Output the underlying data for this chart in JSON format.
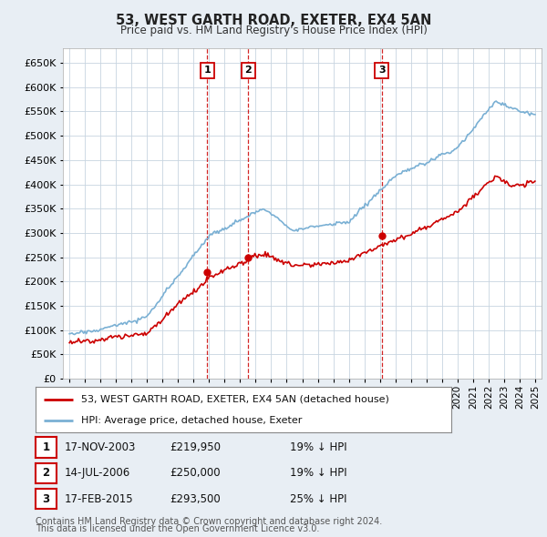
{
  "title": "53, WEST GARTH ROAD, EXETER, EX4 5AN",
  "subtitle": "Price paid vs. HM Land Registry's House Price Index (HPI)",
  "legend_label_red": "53, WEST GARTH ROAD, EXETER, EX4 5AN (detached house)",
  "legend_label_blue": "HPI: Average price, detached house, Exeter",
  "footer1": "Contains HM Land Registry data © Crown copyright and database right 2024.",
  "footer2": "This data is licensed under the Open Government Licence v3.0.",
  "transactions": [
    {
      "num": 1,
      "date": "17-NOV-2003",
      "price": "£219,950",
      "pct": "19% ↓ HPI",
      "year": 2003.88
    },
    {
      "num": 2,
      "date": "14-JUL-2006",
      "price": "£250,000",
      "pct": "19% ↓ HPI",
      "year": 2006.53
    },
    {
      "num": 3,
      "date": "17-FEB-2015",
      "price": "£293,500",
      "pct": "25% ↓ HPI",
      "year": 2015.13
    }
  ],
  "sale_prices": [
    219950,
    250000,
    293500
  ],
  "ylim": [
    0,
    680000
  ],
  "yticks": [
    0,
    50000,
    100000,
    150000,
    200000,
    250000,
    300000,
    350000,
    400000,
    450000,
    500000,
    550000,
    600000,
    650000
  ],
  "color_red": "#cc0000",
  "color_blue": "#7ab0d4",
  "bg_color": "#e8eef4",
  "plot_bg": "#ffffff",
  "grid_color": "#c8d4e0"
}
